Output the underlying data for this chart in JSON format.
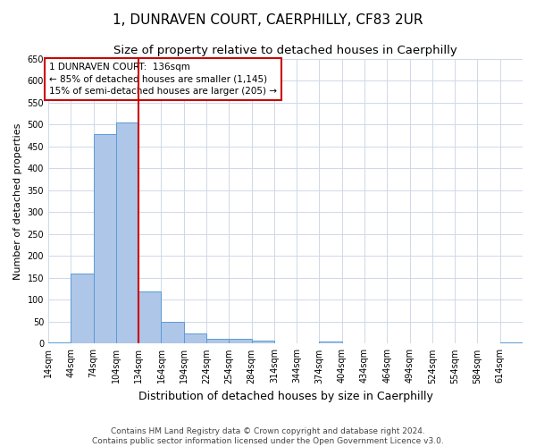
{
  "title1": "1, DUNRAVEN COURT, CAERPHILLY, CF83 2UR",
  "title2": "Size of property relative to detached houses in Caerphilly",
  "xlabel": "Distribution of detached houses by size in Caerphilly",
  "ylabel": "Number of detached properties",
  "bar_color": "#aec6e8",
  "bar_edge_color": "#5b9bd5",
  "grid_color": "#d0d8e8",
  "marker_line_color": "#cc0000",
  "marker_value": 134,
  "categories": [
    "14sqm",
    "44sqm",
    "74sqm",
    "104sqm",
    "134sqm",
    "164sqm",
    "194sqm",
    "224sqm",
    "254sqm",
    "284sqm",
    "314sqm",
    "344sqm",
    "374sqm",
    "404sqm",
    "434sqm",
    "464sqm",
    "494sqm",
    "524sqm",
    "554sqm",
    "584sqm",
    "614sqm"
  ],
  "bin_edges": [
    14,
    44,
    74,
    104,
    134,
    164,
    194,
    224,
    254,
    284,
    314,
    344,
    374,
    404,
    434,
    464,
    494,
    524,
    554,
    584,
    614,
    644
  ],
  "values": [
    3,
    160,
    478,
    505,
    119,
    49,
    24,
    12,
    11,
    8,
    0,
    0,
    5,
    0,
    0,
    0,
    0,
    0,
    0,
    0,
    3
  ],
  "ylim": [
    0,
    650
  ],
  "yticks": [
    0,
    50,
    100,
    150,
    200,
    250,
    300,
    350,
    400,
    450,
    500,
    550,
    600,
    650
  ],
  "annotation_line1": "1 DUNRAVEN COURT:  136sqm",
  "annotation_line2": "← 85% of detached houses are smaller (1,145)",
  "annotation_line3": "15% of semi-detached houses are larger (205) →",
  "annotation_box_color": "#ffffff",
  "annotation_box_edge": "#cc0000",
  "footer1": "Contains HM Land Registry data © Crown copyright and database right 2024.",
  "footer2": "Contains public sector information licensed under the Open Government Licence v3.0.",
  "title1_fontsize": 11,
  "title2_fontsize": 9.5,
  "xlabel_fontsize": 9,
  "ylabel_fontsize": 8,
  "tick_fontsize": 7,
  "annotation_fontsize": 7.5,
  "footer_fontsize": 6.5
}
